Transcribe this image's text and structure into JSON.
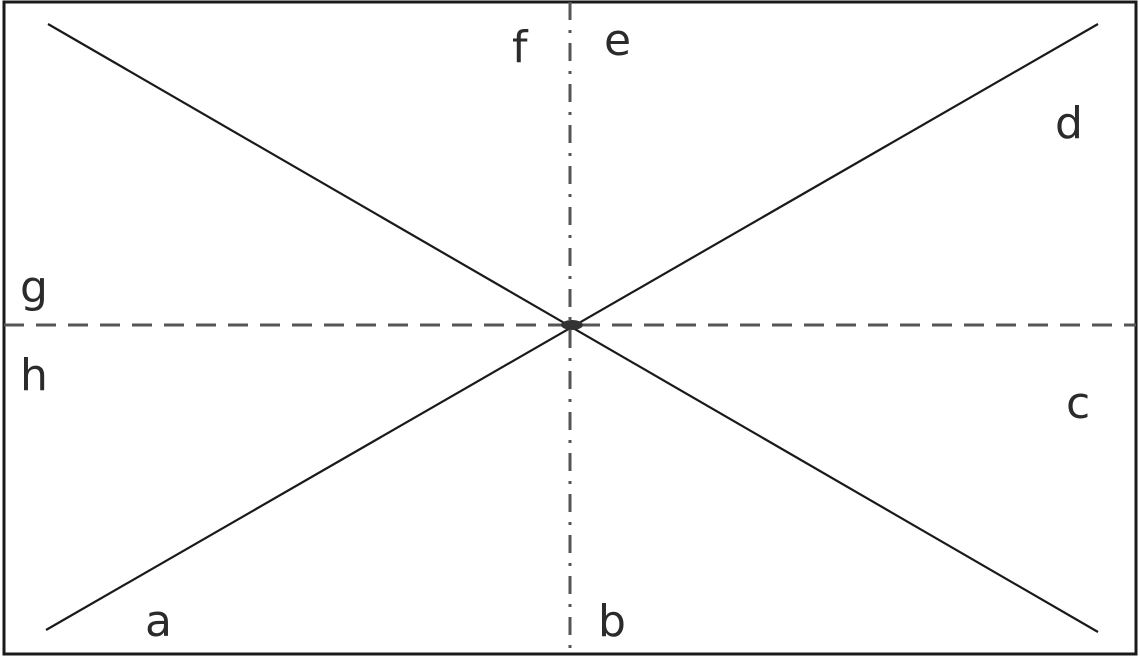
{
  "diagram": {
    "labels": {
      "a": "a",
      "b": "b",
      "c": "c",
      "d": "d",
      "e": "e",
      "f": "f",
      "g": "g",
      "h": "h"
    },
    "stroke_color": "#1a1a1a",
    "dash_color": "#555555",
    "background": "#ffffff"
  }
}
